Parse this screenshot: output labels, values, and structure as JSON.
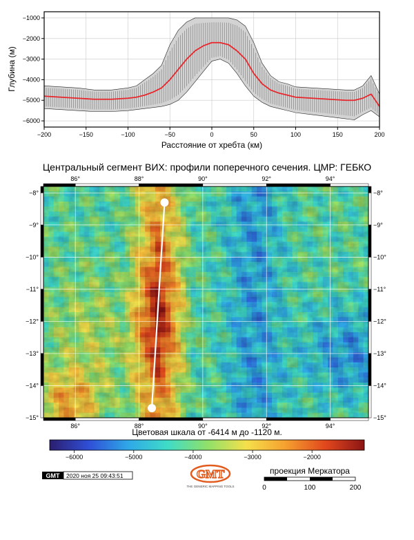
{
  "chart_data": [
    {
      "type": "line",
      "xlabel": "Расстояние от хребта (км)",
      "ylabel": "Глубина (м)",
      "xlim": [
        -200,
        200
      ],
      "ylim": [
        -6300,
        -700
      ],
      "x_ticks": [
        -200,
        -150,
        -100,
        -50,
        0,
        50,
        100,
        150,
        200
      ],
      "y_ticks": [
        -6000,
        -5000,
        -4000,
        -3000,
        -2000,
        -1000
      ],
      "x_tick_labels": [
        "−200",
        "−150",
        "−100",
        "−50",
        "0",
        "50",
        "100",
        "150",
        "200"
      ],
      "y_tick_labels": [
        "−6000",
        "−5000",
        "−4000",
        "−3000",
        "−2000",
        "−1000"
      ],
      "grid": true,
      "series": [
        {
          "role": "median",
          "color": "#e8262b",
          "x": [
            -200,
            -180,
            -160,
            -140,
            -120,
            -100,
            -90,
            -80,
            -70,
            -60,
            -50,
            -40,
            -30,
            -20,
            -10,
            0,
            10,
            20,
            30,
            40,
            50,
            60,
            70,
            80,
            90,
            100,
            120,
            140,
            160,
            170,
            180,
            190,
            200
          ],
          "y": [
            -4800,
            -4850,
            -4900,
            -4950,
            -4950,
            -4900,
            -4850,
            -4750,
            -4600,
            -4400,
            -4000,
            -3500,
            -3000,
            -2600,
            -2350,
            -2200,
            -2200,
            -2300,
            -2600,
            -3000,
            -3700,
            -4200,
            -4500,
            -4650,
            -4750,
            -4850,
            -4900,
            -4950,
            -5000,
            -5000,
            -4900,
            -4700,
            -5300
          ]
        },
        {
          "role": "envelope",
          "color": "#d3d3d3",
          "x": [
            -200,
            -180,
            -160,
            -140,
            -120,
            -100,
            -90,
            -80,
            -70,
            -60,
            -50,
            -40,
            -30,
            -20,
            -10,
            0,
            10,
            20,
            30,
            40,
            50,
            60,
            70,
            80,
            90,
            100,
            120,
            140,
            160,
            170,
            180,
            190,
            200
          ],
          "y_min": [
            -5400,
            -5450,
            -5500,
            -5550,
            -5550,
            -5500,
            -5450,
            -5400,
            -5350,
            -5300,
            -5200,
            -5000,
            -4600,
            -4100,
            -3600,
            -3100,
            -3000,
            -3200,
            -3700,
            -4300,
            -4800,
            -5100,
            -5300,
            -5400,
            -5500,
            -5600,
            -5700,
            -5800,
            -5900,
            -5950,
            -5700,
            -5500,
            -5800
          ],
          "y_max": [
            -4300,
            -4350,
            -4400,
            -4500,
            -4500,
            -4400,
            -4300,
            -4000,
            -3700,
            -3300,
            -2300,
            -1600,
            -1200,
            -1000,
            -1000,
            -1000,
            -1000,
            -1000,
            -1100,
            -1400,
            -2200,
            -3200,
            -3800,
            -4100,
            -4200,
            -4350,
            -4400,
            -4450,
            -4500,
            -4500,
            -4300,
            -3800,
            -4700
          ]
        }
      ]
    },
    {
      "type": "heatmap",
      "title": "Центральный сегмент ВИХ: профили поперечного сечения. ЦМР: ГЕБКО",
      "x_ticks": [
        86,
        88,
        90,
        92,
        94
      ],
      "y_ticks": [
        -8,
        -9,
        -10,
        -11,
        -12,
        -13,
        -14,
        -15
      ],
      "x_tick_labels": [
        "86°",
        "88°",
        "90°",
        "92°",
        "94°"
      ],
      "y_tick_labels": [
        "−8°",
        "−9°",
        "−10°",
        "−11°",
        "−12°",
        "−13°",
        "−14°",
        "−15°"
      ],
      "lon_range": [
        85.0,
        95.2
      ],
      "lat_range": [
        -15.0,
        -7.8
      ],
      "grid": true,
      "profile_line": {
        "lon": [
          88.8,
          88.4
        ],
        "lat": [
          -8.3,
          -14.7
        ]
      },
      "ridge_lon": 88.6,
      "colorbar": {
        "label": "Цветовая шкала от -6414 м до -1120 м.",
        "min": -6414,
        "max": -1120,
        "ticks": [
          -6000,
          -5000,
          -4000,
          -3000,
          -2000
        ],
        "tick_labels": [
          "−6000",
          "−5000",
          "−4000",
          "−3000",
          "−2000"
        ],
        "colors": [
          "#2c1e6e",
          "#2f4fd7",
          "#2fa8e8",
          "#3fdcc7",
          "#8fe06a",
          "#f5e04b",
          "#f5a030",
          "#e2481d",
          "#8c1515"
        ]
      }
    }
  ],
  "footer": {
    "gmt_badge": "GMT",
    "timestamp": "2020 ноя 25 09:43:51",
    "logo_caption": "THE GENERIC MAPPING TOOLS",
    "projection": "проекция Меркатора",
    "scale_labels": [
      "0",
      "100",
      "200"
    ]
  },
  "colors": {
    "median_line": "#e8262b",
    "envelope": "#d3d3d3",
    "error_bars": "#555555",
    "profile_line": "#ffffff"
  }
}
